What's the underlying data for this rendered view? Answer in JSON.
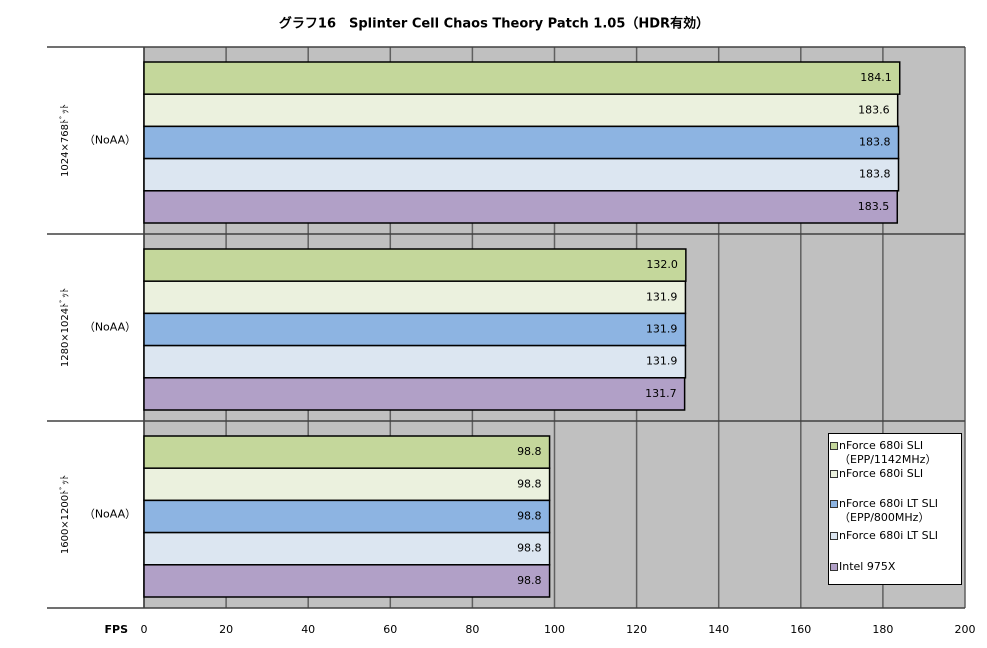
{
  "chart_data": {
    "type": "bar",
    "orientation": "horizontal",
    "title": "グラフ16　Splinter Cell Chaos Theory Patch 1.05（HDR有効）",
    "categories": [
      "1024×768ﾄﾞｯﾄ",
      "1280×1024ﾄﾞｯﾄ",
      "1600×1200ﾄﾞｯﾄ"
    ],
    "category_notes": [
      "（NoAA）",
      "（NoAA）",
      "（NoAA）"
    ],
    "x_label": "FPS",
    "xlim": [
      0,
      200
    ],
    "xticks": [
      0,
      20,
      40,
      60,
      80,
      100,
      120,
      140,
      160,
      180,
      200
    ],
    "grid": true,
    "legend": "bottom-right",
    "series": [
      {
        "name": "nForce 680i SLI\n（EPP/1142MHz）",
        "color": "#c4d79b",
        "values": [
          184.1,
          132,
          98.8
        ],
        "value_labels": [
          "184.1",
          "132.0",
          "98.8"
        ]
      },
      {
        "name": "nForce 680i SLI",
        "color": "#ebf1de",
        "values": [
          183.6,
          131.9,
          98.8
        ],
        "value_labels": [
          "183.6",
          "131.9",
          "98.8"
        ]
      },
      {
        "name": "nForce 680i LT SLI\n（EPP/800MHz）",
        "color": "#8db4e2",
        "values": [
          183.8,
          131.9,
          98.8
        ],
        "value_labels": [
          "183.8",
          "131.9",
          "98.8"
        ]
      },
      {
        "name": "nForce 680i LT SLI",
        "color": "#dce6f1",
        "values": [
          183.8,
          131.9,
          98.8
        ],
        "value_labels": [
          "183.8",
          "131.9",
          "98.8"
        ]
      },
      {
        "name": "Intel 975X",
        "color": "#b1a0c7",
        "values": [
          183.5,
          131.7,
          98.8
        ],
        "value_labels": [
          "183.5",
          "131.7",
          "98.8"
        ]
      }
    ]
  }
}
